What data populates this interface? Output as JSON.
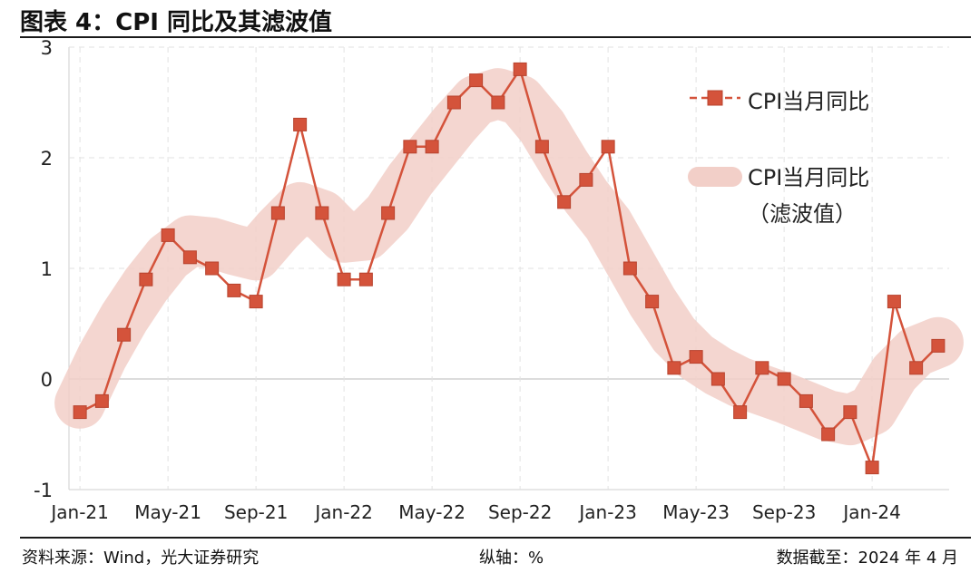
{
  "title": "图表 4：CPI 同比及其滤波值",
  "footer": {
    "source": "资料来源：Wind，光大证券研究",
    "axis_note": "纵轴：%",
    "date_note": "数据截至：2024 年 4 月"
  },
  "chart_data": {
    "type": "line",
    "title": "图表 4：CPI 同比及其滤波值",
    "xlabel": "",
    "ylabel": "%",
    "ylim": [
      -1,
      3
    ],
    "yticks": [
      -1,
      0,
      1,
      2,
      3
    ],
    "grid": true,
    "legend_position": "top-right",
    "x": [
      "Jan-21",
      "Feb-21",
      "Mar-21",
      "Apr-21",
      "May-21",
      "Jun-21",
      "Jul-21",
      "Aug-21",
      "Sep-21",
      "Oct-21",
      "Nov-21",
      "Dec-21",
      "Jan-22",
      "Feb-22",
      "Mar-22",
      "Apr-22",
      "May-22",
      "Jun-22",
      "Jul-22",
      "Aug-22",
      "Sep-22",
      "Oct-22",
      "Nov-22",
      "Dec-22",
      "Jan-23",
      "Feb-23",
      "Mar-23",
      "Apr-23",
      "May-23",
      "Jun-23",
      "Jul-23",
      "Aug-23",
      "Sep-23",
      "Oct-23",
      "Nov-23",
      "Dec-23",
      "Jan-24",
      "Feb-24",
      "Mar-24",
      "Apr-24"
    ],
    "xtick_labels": [
      "Jan-21",
      "May-21",
      "Sep-21",
      "Jan-22",
      "May-22",
      "Sep-22",
      "Jan-23",
      "May-23",
      "Sep-23",
      "Jan-24"
    ],
    "series": [
      {
        "name": "CPI当月同比",
        "style": "line-marker",
        "color": "#d4533b",
        "values": [
          -0.3,
          -0.2,
          0.4,
          0.9,
          1.3,
          1.1,
          1.0,
          0.8,
          0.7,
          1.5,
          2.3,
          1.5,
          0.9,
          0.9,
          1.5,
          2.1,
          2.1,
          2.5,
          2.7,
          2.5,
          2.8,
          2.1,
          1.6,
          1.8,
          2.1,
          1.0,
          0.7,
          0.1,
          0.2,
          0.0,
          -0.3,
          0.1,
          0.0,
          -0.2,
          -0.5,
          -0.3,
          -0.8,
          0.7,
          0.1,
          0.3
        ]
      },
      {
        "name": "CPI当月同比（滤波值）",
        "style": "band",
        "color": "#f2cfc8",
        "values": [
          -0.22,
          0.2,
          0.55,
          0.85,
          1.1,
          1.25,
          1.23,
          1.17,
          1.12,
          1.35,
          1.55,
          1.48,
          1.28,
          1.3,
          1.5,
          1.8,
          2.05,
          2.3,
          2.52,
          2.58,
          2.52,
          2.28,
          1.95,
          1.65,
          1.4,
          1.05,
          0.7,
          0.4,
          0.2,
          0.07,
          -0.03,
          -0.1,
          -0.17,
          -0.25,
          -0.33,
          -0.37,
          -0.28,
          0.05,
          0.25,
          0.33
        ]
      }
    ]
  },
  "legend": {
    "line_label": "CPI当月同比",
    "band_label_1": "CPI当月同比",
    "band_label_2": "（滤波值）"
  }
}
